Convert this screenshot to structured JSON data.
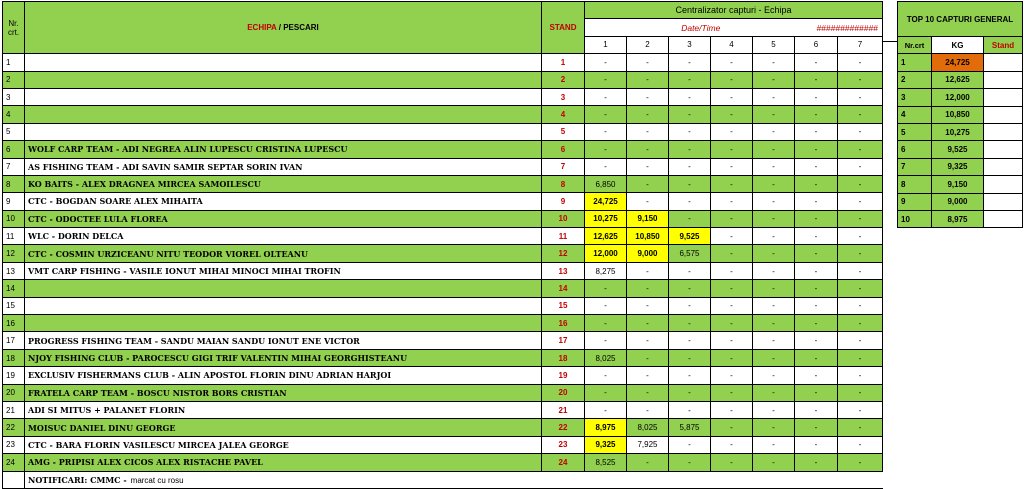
{
  "header": {
    "nr_crt": "Nr. crt.",
    "echipa": "ECHIPA",
    "pescari": " / PESCARI",
    "stand": "STAND",
    "centralizator": "Centralizator capturi - Echipa",
    "date_time_label": "Date/Time",
    "date_time_value": "#############",
    "rounds": [
      "1",
      "2",
      "3",
      "4",
      "5",
      "6",
      "7"
    ]
  },
  "rows": [
    {
      "nr": "1",
      "team": "",
      "stand": "1",
      "green": false,
      "captures": [
        "-",
        "-",
        "-",
        "-",
        "-",
        "-",
        "-"
      ]
    },
    {
      "nr": "2",
      "team": "",
      "stand": "2",
      "green": true,
      "captures": [
        "-",
        "-",
        "-",
        "-",
        "-",
        "-",
        "-"
      ]
    },
    {
      "nr": "3",
      "team": "",
      "stand": "3",
      "green": false,
      "captures": [
        "-",
        "-",
        "-",
        "-",
        "-",
        "-",
        "-"
      ]
    },
    {
      "nr": "4",
      "team": "",
      "stand": "4",
      "green": true,
      "captures": [
        "-",
        "-",
        "-",
        "-",
        "-",
        "-",
        "-"
      ]
    },
    {
      "nr": "5",
      "team": "",
      "stand": "5",
      "green": false,
      "captures": [
        "-",
        "-",
        "-",
        "-",
        "-",
        "-",
        "-"
      ]
    },
    {
      "nr": "6",
      "team": "WOLF CARP TEAM - ADI NEGREA ALIN LUPESCU CRISTINA LUPESCU",
      "stand": "6",
      "green": true,
      "captures": [
        "-",
        "-",
        "-",
        "-",
        "-",
        "-",
        "-"
      ]
    },
    {
      "nr": "7",
      "team": "AS FISHING TEAM - ADI SAVIN SAMIR SEPTAR SORIN IVAN",
      "stand": "7",
      "green": false,
      "captures": [
        "-",
        "-",
        "-",
        "-",
        "-",
        "-",
        "-"
      ]
    },
    {
      "nr": "8",
      "team": "KO BAITS - ALEX DRAGNEA MIRCEA SAMOILESCU",
      "stand": "8",
      "green": true,
      "captures": [
        "6,850",
        "-",
        "-",
        "-",
        "-",
        "-",
        "-"
      ]
    },
    {
      "nr": "9",
      "team": "CTC - BOGDAN SOARE ALEX MIHAITA",
      "stand": "9",
      "green": false,
      "captures": [
        "24,725",
        "-",
        "-",
        "-",
        "-",
        "-",
        "-"
      ],
      "yellow": [
        0
      ]
    },
    {
      "nr": "10",
      "team": "CTC - ODOCTEE LULA FLOREA",
      "stand": "10",
      "green": true,
      "captures": [
        "10,275",
        "9,150",
        "-",
        "-",
        "-",
        "-",
        "-"
      ],
      "yellow": [
        0,
        1
      ]
    },
    {
      "nr": "11",
      "team": "WLC - DORIN DELCA",
      "stand": "11",
      "green": false,
      "captures": [
        "12,625",
        "10,850",
        "9,525",
        "-",
        "-",
        "-",
        "-"
      ],
      "yellow": [
        0,
        1,
        2
      ]
    },
    {
      "nr": "12",
      "team": "CTC - COSMIN URZICEANU NITU TEODOR VIOREL OLTEANU",
      "stand": "12",
      "green": true,
      "captures": [
        "12,000",
        "9,000",
        "6,575",
        "-",
        "-",
        "-",
        "-"
      ],
      "yellow": [
        0,
        1
      ]
    },
    {
      "nr": "13",
      "team": "VMT CARP FISHING - VASILE IONUT MIHAI MINOCI MIHAI TROFIN",
      "stand": "13",
      "green": false,
      "captures": [
        "8,275",
        "-",
        "-",
        "-",
        "-",
        "-",
        "-"
      ]
    },
    {
      "nr": "14",
      "team": "",
      "stand": "14",
      "green": true,
      "captures": [
        "-",
        "-",
        "-",
        "-",
        "-",
        "-",
        "-"
      ]
    },
    {
      "nr": "15",
      "team": "",
      "stand": "15",
      "green": false,
      "captures": [
        "-",
        "-",
        "-",
        "-",
        "-",
        "-",
        "-"
      ]
    },
    {
      "nr": "16",
      "team": "",
      "stand": "16",
      "green": true,
      "captures": [
        "-",
        "-",
        "-",
        "-",
        "-",
        "-",
        "-"
      ]
    },
    {
      "nr": "17",
      "team": "PROGRESS FISHING TEAM - SANDU MAIAN SANDU IONUT ENE VICTOR",
      "stand": "17",
      "green": false,
      "captures": [
        "-",
        "-",
        "-",
        "-",
        "-",
        "-",
        "-"
      ]
    },
    {
      "nr": "18",
      "team": "NJOY FISHING CLUB - PAROCESCU GIGI TRIF VALENTIN MIHAI GEORGHISTEANU",
      "stand": "18",
      "green": true,
      "captures": [
        "8,025",
        "-",
        "-",
        "-",
        "-",
        "-",
        "-"
      ]
    },
    {
      "nr": "19",
      "team": "EXCLUSIV FISHERMANS CLUB - ALIN APOSTOL FLORIN DINU ADRIAN HARJOI",
      "stand": "19",
      "green": false,
      "captures": [
        "-",
        "-",
        "-",
        "-",
        "-",
        "-",
        "-"
      ]
    },
    {
      "nr": "20",
      "team": "FRATELA CARP TEAM - BOSCU NISTOR BORS CRISTIAN",
      "stand": "20",
      "green": true,
      "captures": [
        "-",
        "-",
        "-",
        "-",
        "-",
        "-",
        "-"
      ]
    },
    {
      "nr": "21",
      "team": "ADI SI MITUS + PALANET FLORIN",
      "stand": "21",
      "green": false,
      "captures": [
        "-",
        "-",
        "-",
        "-",
        "-",
        "-",
        "-"
      ]
    },
    {
      "nr": "22",
      "team": "MOISUC DANIEL DINU GEORGE",
      "stand": "22",
      "green": true,
      "captures": [
        "8,975",
        "8,025",
        "5,875",
        "-",
        "-",
        "-",
        "-"
      ],
      "yellow": [
        0
      ]
    },
    {
      "nr": "23",
      "team": "CTC - BARA FLORIN VASILESCU MIRCEA JALEA GEORGE",
      "stand": "23",
      "green": false,
      "captures": [
        "9,325",
        "7,925",
        "-",
        "-",
        "-",
        "-",
        "-"
      ],
      "yellow": [
        0
      ]
    },
    {
      "nr": "24",
      "team": "AMG - PRIPISI ALEX CICOS ALEX RISTACHE PAVEL",
      "stand": "24",
      "green": true,
      "captures": [
        "8,525",
        "-",
        "-",
        "-",
        "-",
        "-",
        "-"
      ]
    }
  ],
  "footer": {
    "label": "NOTIFICARI: CMMC -",
    "note": "marcat cu rosu"
  },
  "top10": {
    "title": "TOP 10 CAPTURI GENERAL",
    "col_nr": "Nr.crt",
    "col_kg": "KG",
    "col_stand": "Stand",
    "rows": [
      {
        "nr": "1",
        "kg": "24,725",
        "stand": ""
      },
      {
        "nr": "2",
        "kg": "12,625",
        "stand": ""
      },
      {
        "nr": "3",
        "kg": "12,000",
        "stand": ""
      },
      {
        "nr": "4",
        "kg": "10,850",
        "stand": ""
      },
      {
        "nr": "5",
        "kg": "10,275",
        "stand": ""
      },
      {
        "nr": "6",
        "kg": "9,525",
        "stand": ""
      },
      {
        "nr": "7",
        "kg": "9,325",
        "stand": ""
      },
      {
        "nr": "8",
        "kg": "9,150",
        "stand": ""
      },
      {
        "nr": "9",
        "kg": "9,000",
        "stand": ""
      },
      {
        "nr": "10",
        "kg": "8,975",
        "stand": ""
      }
    ]
  },
  "colors": {
    "green": "#92d050",
    "yellow": "#ffff00",
    "orange": "#e26b0a",
    "red_text": "#c00000"
  }
}
